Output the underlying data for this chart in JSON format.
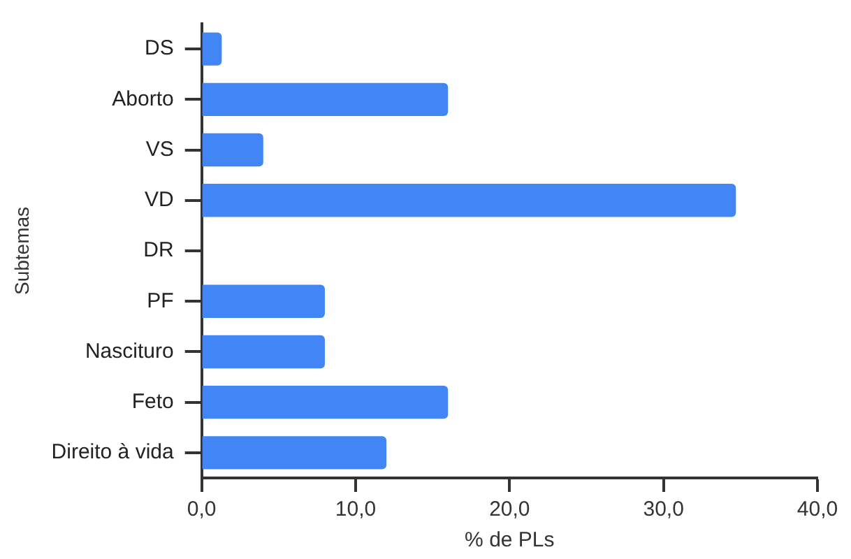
{
  "chart_data": {
    "type": "bar",
    "orientation": "horizontal",
    "xlabel": "% de PLs",
    "ylabel": "Subtemas",
    "categories": [
      "DS",
      "Aborto",
      "VS",
      "VD",
      "DR",
      "PF",
      "Nascituro",
      "Feto",
      "Direito à vida"
    ],
    "values": [
      1.3,
      16,
      4,
      34.7,
      0,
      8,
      8,
      16,
      12
    ],
    "color": "#4285f4",
    "xlim": [
      0,
      40
    ],
    "xticks": [
      {
        "value": 0,
        "label": "0,0"
      },
      {
        "value": 10,
        "label": "10,0"
      },
      {
        "value": 20,
        "label": "20,0"
      },
      {
        "value": 30,
        "label": "30,0"
      },
      {
        "value": 40,
        "label": "40,0"
      }
    ],
    "grid": false,
    "legend": false
  }
}
